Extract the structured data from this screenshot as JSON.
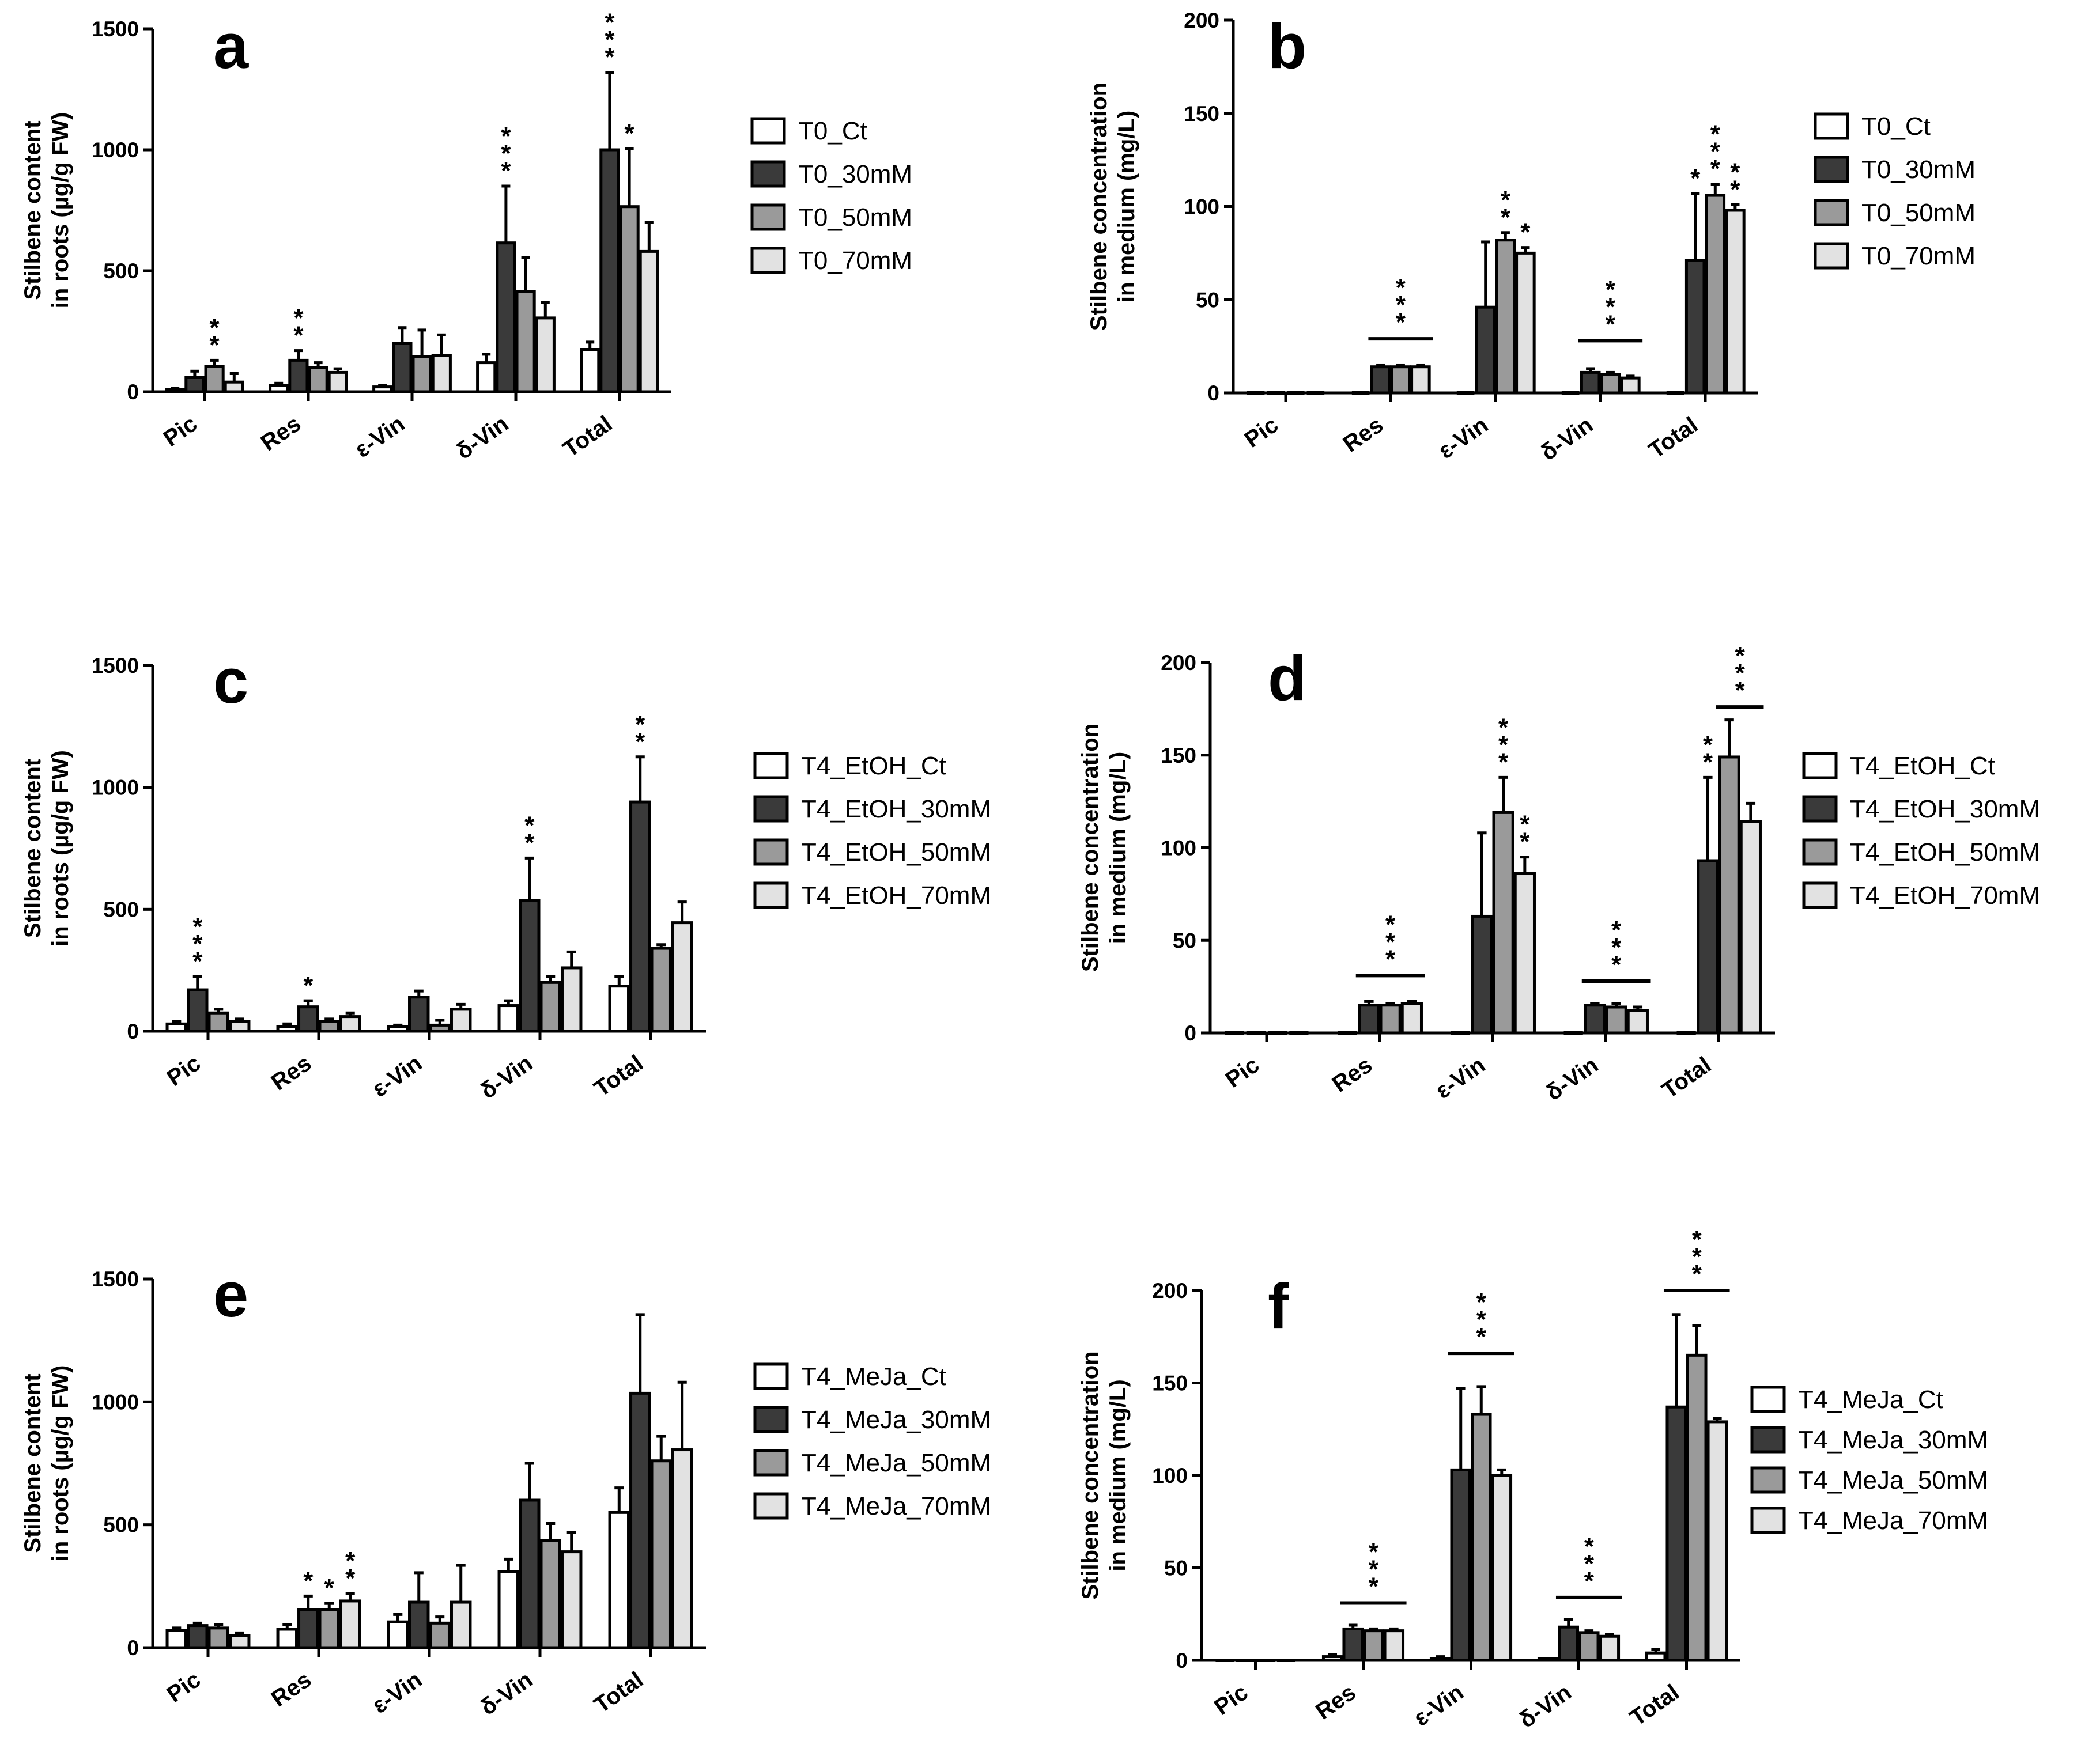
{
  "colors": {
    "bar_fills": [
      "#ffffff",
      "#3a3a3a",
      "#9a9a9a",
      "#e2e2e2"
    ],
    "stroke": "#000000"
  },
  "chart_data": [
    {
      "panel": "a",
      "type": "bar",
      "ylabel": [
        "Stilbene content",
        "in roots (µg/g FW)"
      ],
      "ylim": [
        0,
        1500
      ],
      "yticks": [
        0,
        500,
        1000,
        1500
      ],
      "categories": [
        "Pic",
        "Res",
        "ε-Vin",
        "δ-Vin",
        "Total"
      ],
      "series": [
        {
          "name": "T0_Ct",
          "values": [
            10,
            25,
            20,
            120,
            175
          ],
          "errors": [
            5,
            10,
            5,
            35,
            30
          ]
        },
        {
          "name": "T0_30mM",
          "values": [
            60,
            130,
            200,
            615,
            1000
          ],
          "errors": [
            25,
            40,
            65,
            235,
            320
          ]
        },
        {
          "name": "T0_50mM",
          "values": [
            105,
            100,
            145,
            415,
            765
          ],
          "errors": [
            25,
            20,
            110,
            140,
            240
          ]
        },
        {
          "name": "T0_70mM",
          "values": [
            40,
            80,
            150,
            305,
            580
          ],
          "errors": [
            35,
            15,
            85,
            65,
            120
          ]
        }
      ],
      "annotations": [
        {
          "cat": 0,
          "series": 2,
          "text": "**"
        },
        {
          "cat": 1,
          "series": 1,
          "text": "**"
        },
        {
          "cat": 3,
          "series": 1,
          "text": "***"
        },
        {
          "cat": 4,
          "series": 1,
          "text": "***"
        },
        {
          "cat": 4,
          "series": 2,
          "text": "*"
        }
      ],
      "brackets": []
    },
    {
      "panel": "b",
      "type": "bar",
      "ylabel": [
        "Stilbene concentration",
        "in medium (mg/L)"
      ],
      "ylim": [
        0,
        200
      ],
      "yticks": [
        0,
        50,
        100,
        150,
        200
      ],
      "categories": [
        "Pic",
        "Res",
        "ε-Vin",
        "δ-Vin",
        "Total"
      ],
      "series": [
        {
          "name": "T0_Ct",
          "values": [
            0,
            0,
            0,
            0,
            0
          ],
          "errors": [
            0,
            0,
            0,
            0,
            0
          ]
        },
        {
          "name": "T0_30mM",
          "values": [
            0,
            14,
            46,
            11,
            71
          ],
          "errors": [
            0,
            1,
            35,
            2,
            36
          ]
        },
        {
          "name": "T0_50mM",
          "values": [
            0,
            14,
            82,
            10,
            106
          ],
          "errors": [
            0,
            1,
            4,
            1,
            6
          ]
        },
        {
          "name": "T0_70mM",
          "values": [
            0,
            14,
            75,
            8,
            98
          ],
          "errors": [
            0,
            1,
            3,
            1,
            3
          ]
        }
      ],
      "annotations": [
        {
          "cat": 2,
          "series": 2,
          "text": "**"
        },
        {
          "cat": 2,
          "series": 3,
          "text": "*"
        },
        {
          "cat": 4,
          "series": 1,
          "text": "*"
        },
        {
          "cat": 4,
          "series": 2,
          "text": "***"
        },
        {
          "cat": 4,
          "series": 3,
          "text": "**"
        }
      ],
      "brackets": [
        {
          "cat": 1,
          "level": 29,
          "text": "***"
        },
        {
          "cat": 3,
          "level": 28,
          "text": "***"
        }
      ]
    },
    {
      "panel": "c",
      "type": "bar",
      "ylabel": [
        "Stilbene content",
        "in roots (µg/g FW)"
      ],
      "ylim": [
        0,
        1500
      ],
      "yticks": [
        0,
        500,
        1000,
        1500
      ],
      "categories": [
        "Pic",
        "Res",
        "ε-Vin",
        "δ-Vin",
        "Total"
      ],
      "series": [
        {
          "name": "T4_EtOH_Ct",
          "values": [
            30,
            20,
            20,
            105,
            185
          ],
          "errors": [
            10,
            10,
            5,
            20,
            40
          ]
        },
        {
          "name": "T4_EtOH_30mM",
          "values": [
            170,
            100,
            140,
            535,
            940
          ],
          "errors": [
            55,
            25,
            25,
            175,
            185
          ]
        },
        {
          "name": "T4_EtOH_50mM",
          "values": [
            75,
            40,
            25,
            200,
            340
          ],
          "errors": [
            15,
            10,
            20,
            25,
            15
          ]
        },
        {
          "name": "T4_EtOH_70mM",
          "values": [
            40,
            60,
            90,
            260,
            445
          ],
          "errors": [
            10,
            15,
            20,
            65,
            85
          ]
        }
      ],
      "annotations": [
        {
          "cat": 0,
          "series": 1,
          "text": "***"
        },
        {
          "cat": 1,
          "series": 1,
          "text": "*"
        },
        {
          "cat": 3,
          "series": 1,
          "text": "**"
        },
        {
          "cat": 4,
          "series": 1,
          "text": "**"
        }
      ],
      "brackets": []
    },
    {
      "panel": "d",
      "type": "bar",
      "ylabel": [
        "Stilbene concentration",
        "in medium (mg/L)"
      ],
      "ylim": [
        0,
        200
      ],
      "yticks": [
        0,
        50,
        100,
        150,
        200
      ],
      "categories": [
        "Pic",
        "Res",
        "ε-Vin",
        "δ-Vin",
        "Total"
      ],
      "series": [
        {
          "name": "T4_EtOH_Ct",
          "values": [
            0,
            0,
            0,
            0,
            0
          ],
          "errors": [
            0,
            0,
            0,
            0,
            0
          ]
        },
        {
          "name": "T4_EtOH_30mM",
          "values": [
            0,
            15,
            63,
            15,
            93
          ],
          "errors": [
            0,
            2,
            45,
            1,
            45
          ]
        },
        {
          "name": "T4_EtOH_50mM",
          "values": [
            0,
            15,
            119,
            14,
            149
          ],
          "errors": [
            0,
            1,
            19,
            2,
            20
          ]
        },
        {
          "name": "T4_EtOH_70mM",
          "values": [
            0,
            16,
            86,
            12,
            114
          ],
          "errors": [
            0,
            1,
            9,
            2,
            10
          ]
        }
      ],
      "annotations": [
        {
          "cat": 2,
          "series": 2,
          "text": "***"
        },
        {
          "cat": 2,
          "series": 3,
          "text": "**"
        },
        {
          "cat": 4,
          "series": 1,
          "text": "**"
        }
      ],
      "brackets": [
        {
          "cat": 1,
          "level": 31,
          "text": "***"
        },
        {
          "cat": 3,
          "level": 28,
          "text": "***"
        },
        {
          "cat": 4,
          "level": 176,
          "text": "***",
          "from": 2,
          "to": 3
        }
      ]
    },
    {
      "panel": "e",
      "type": "bar",
      "ylabel": [
        "Stilbene content",
        "in roots (µg/g FW)"
      ],
      "ylim": [
        0,
        1500
      ],
      "yticks": [
        0,
        500,
        1000,
        1500
      ],
      "categories": [
        "Pic",
        "Res",
        "ε-Vin",
        "δ-Vin",
        "Total"
      ],
      "series": [
        {
          "name": "T4_MeJa_Ct",
          "values": [
            70,
            75,
            105,
            310,
            550
          ],
          "errors": [
            10,
            20,
            30,
            50,
            100
          ]
        },
        {
          "name": "T4_MeJa_30mM",
          "values": [
            90,
            155,
            185,
            600,
            1035
          ],
          "errors": [
            10,
            55,
            120,
            150,
            320
          ]
        },
        {
          "name": "T4_MeJa_50mM",
          "values": [
            80,
            155,
            100,
            435,
            760
          ],
          "errors": [
            15,
            25,
            25,
            70,
            100
          ]
        },
        {
          "name": "T4_MeJa_70mM",
          "values": [
            50,
            190,
            185,
            390,
            805
          ],
          "errors": [
            10,
            30,
            150,
            80,
            275
          ]
        }
      ],
      "annotations": [
        {
          "cat": 1,
          "series": 1,
          "text": "*"
        },
        {
          "cat": 1,
          "series": 2,
          "text": "*"
        },
        {
          "cat": 1,
          "series": 3,
          "text": "**"
        }
      ],
      "brackets": []
    },
    {
      "panel": "f",
      "type": "bar",
      "ylabel": [
        "Stilbene concentration",
        "in medium (mg/L)"
      ],
      "ylim": [
        0,
        200
      ],
      "yticks": [
        0,
        50,
        100,
        150,
        200
      ],
      "categories": [
        "Pic",
        "Res",
        "ε-Vin",
        "δ-Vin",
        "Total"
      ],
      "series": [
        {
          "name": "T4_MeJa_Ct",
          "values": [
            0,
            2,
            1,
            1,
            4
          ],
          "errors": [
            0,
            1,
            1,
            0,
            2
          ]
        },
        {
          "name": "T4_MeJa_30mM",
          "values": [
            0,
            17,
            103,
            18,
            137
          ],
          "errors": [
            0,
            2,
            44,
            4,
            50
          ]
        },
        {
          "name": "T4_MeJa_50mM",
          "values": [
            0,
            16,
            133,
            15,
            165
          ],
          "errors": [
            0,
            1,
            15,
            1,
            16
          ]
        },
        {
          "name": "T4_MeJa_70mM",
          "values": [
            0,
            16,
            100,
            13,
            129
          ],
          "errors": [
            0,
            1,
            3,
            1,
            2
          ]
        }
      ],
      "annotations": [],
      "brackets": [
        {
          "cat": 1,
          "level": 31,
          "text": "***"
        },
        {
          "cat": 2,
          "level": 166,
          "text": "***"
        },
        {
          "cat": 3,
          "level": 34,
          "text": "***"
        },
        {
          "cat": 4,
          "level": 200,
          "text": "***"
        }
      ]
    }
  ]
}
